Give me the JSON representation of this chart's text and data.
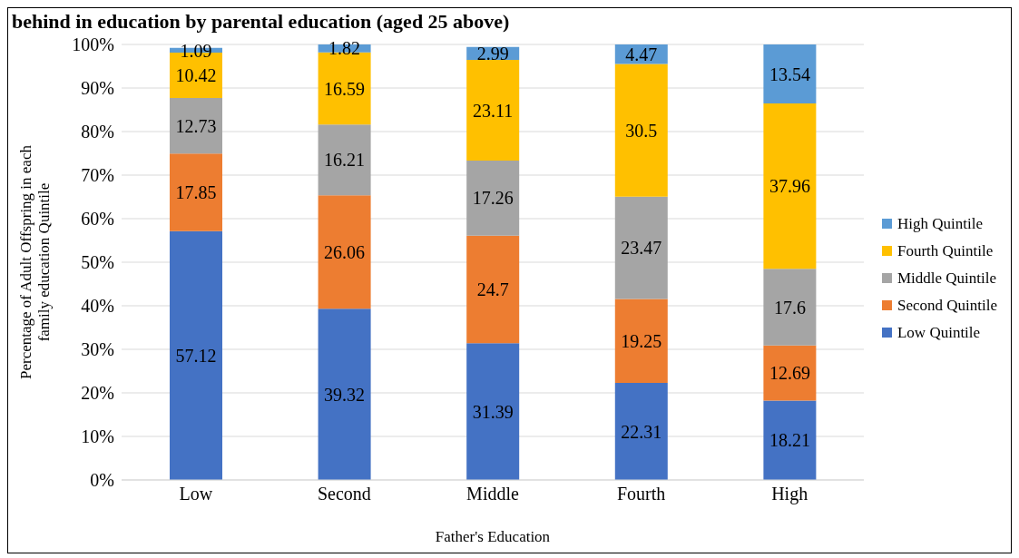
{
  "chart_data": {
    "type": "bar",
    "title": "behind in education by parental education (aged 25 above)",
    "xlabel": "Father's Education",
    "ylabel": "Percentage of Adult Offspring in each family education Quintile",
    "categories": [
      "Low",
      "Second",
      "Middle",
      "Fourth",
      "High"
    ],
    "series": [
      {
        "name": "Low Quintile",
        "color": "#4472c4",
        "values": [
          57.12,
          39.32,
          31.39,
          22.31,
          18.21
        ]
      },
      {
        "name": "Second Quintile",
        "color": "#ed7d31",
        "values": [
          17.85,
          26.06,
          24.7,
          19.25,
          12.69
        ]
      },
      {
        "name": "Middle Quintile",
        "color": "#a5a5a5",
        "values": [
          12.73,
          16.21,
          17.26,
          23.47,
          17.6
        ]
      },
      {
        "name": "Fourth Quintile",
        "color": "#ffc000",
        "values": [
          10.42,
          16.59,
          23.11,
          30.5,
          37.96
        ]
      },
      {
        "name": "High Quintile",
        "color": "#5b9bd5",
        "values": [
          1.09,
          1.82,
          2.99,
          4.47,
          13.54
        ]
      }
    ],
    "stacked": true,
    "data_labels": true,
    "grid": "y",
    "legend": "right",
    "ylim": [
      0,
      100
    ],
    "yticks": [
      {
        "value": 0,
        "label": "0%"
      },
      {
        "value": 10,
        "label": "10%"
      },
      {
        "value": 20,
        "label": "20%"
      },
      {
        "value": 30,
        "label": "30%"
      },
      {
        "value": 40,
        "label": "40%"
      },
      {
        "value": 50,
        "label": "50%"
      },
      {
        "value": 60,
        "label": "60%"
      },
      {
        "value": 70,
        "label": "70%"
      },
      {
        "value": 80,
        "label": "80%"
      },
      {
        "value": 90,
        "label": "90%"
      },
      {
        "value": 100,
        "label": "100%"
      }
    ]
  }
}
